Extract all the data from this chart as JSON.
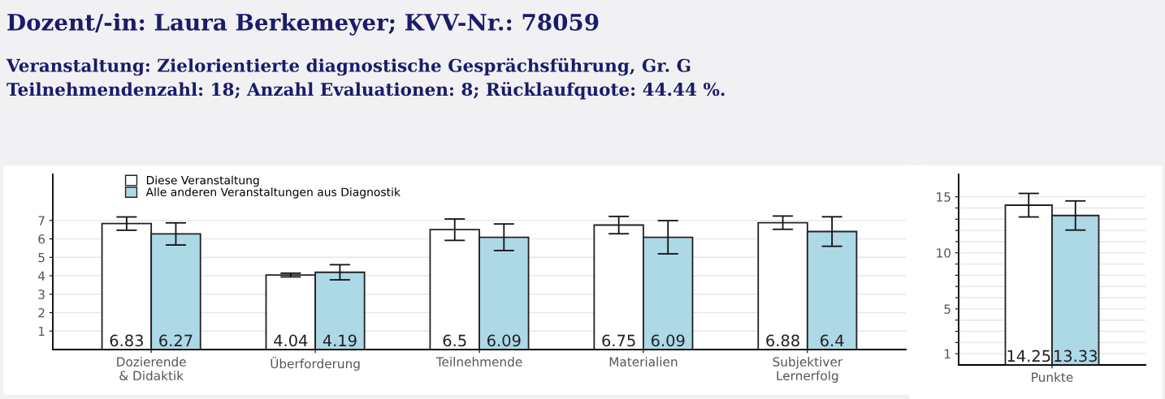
{
  "chart_data": [
    {
      "type": "bar",
      "title": "Dozent/-in: Laura Berkemeyer; KVV-Nr.: 78059",
      "subtitle": "Veranstaltung: Zielorientierte diagnostische Gesprächsführung, Gr. G\nTeilnehmendenzahl: 18; Anzahl Evaluationen: 8; Rücklaufquote: 44.44 %.",
      "categories": [
        "Dozierende\n& Didaktik",
        "Überforderung",
        "Teilnehmende",
        "Materialien",
        "Subjektiver\nLernerfolg"
      ],
      "series": [
        {
          "name": "Diese Veranstaltung",
          "color": "#ffffff",
          "values": [
            6.83,
            4.04,
            6.5,
            6.75,
            6.88
          ],
          "errors": [
            0.36,
            0.1,
            0.58,
            0.47,
            0.36
          ]
        },
        {
          "name": "Alle anderen Veranstaltungen aus Diagnostik",
          "color": "#add8e6",
          "values": [
            6.27,
            4.19,
            6.09,
            6.09,
            6.4
          ],
          "errors": [
            0.6,
            0.41,
            0.72,
            0.9,
            0.8
          ]
        }
      ],
      "ylim": [
        0,
        9.5
      ],
      "yticks": [
        1,
        2,
        3,
        4,
        5,
        6,
        7
      ],
      "grid": "y",
      "legend": "top left",
      "data_labels": true
    },
    {
      "type": "bar",
      "categories": [
        "Punkte"
      ],
      "series": [
        {
          "color": "#ffffff",
          "values": [
            14.25
          ],
          "errors": [
            1.05
          ]
        },
        {
          "color": "#add8e6",
          "values": [
            13.33
          ],
          "errors": [
            1.3
          ]
        }
      ],
      "ylim": [
        0,
        17
      ],
      "yticks": [
        1,
        {
          "value": 2,
          "label": null
        },
        {
          "value": 3,
          "label": null
        },
        {
          "value": 4,
          "label": null
        },
        5,
        {
          "value": 6,
          "label": null
        },
        {
          "value": 7,
          "label": null
        },
        {
          "value": 8,
          "label": null
        },
        {
          "value": 9,
          "label": null
        },
        10,
        {
          "value": 11,
          "label": null
        },
        {
          "value": 12,
          "label": null
        },
        {
          "value": 13,
          "label": null
        },
        {
          "value": 14,
          "label": null
        },
        15
      ],
      "grid": "y",
      "data_labels": true
    }
  ]
}
